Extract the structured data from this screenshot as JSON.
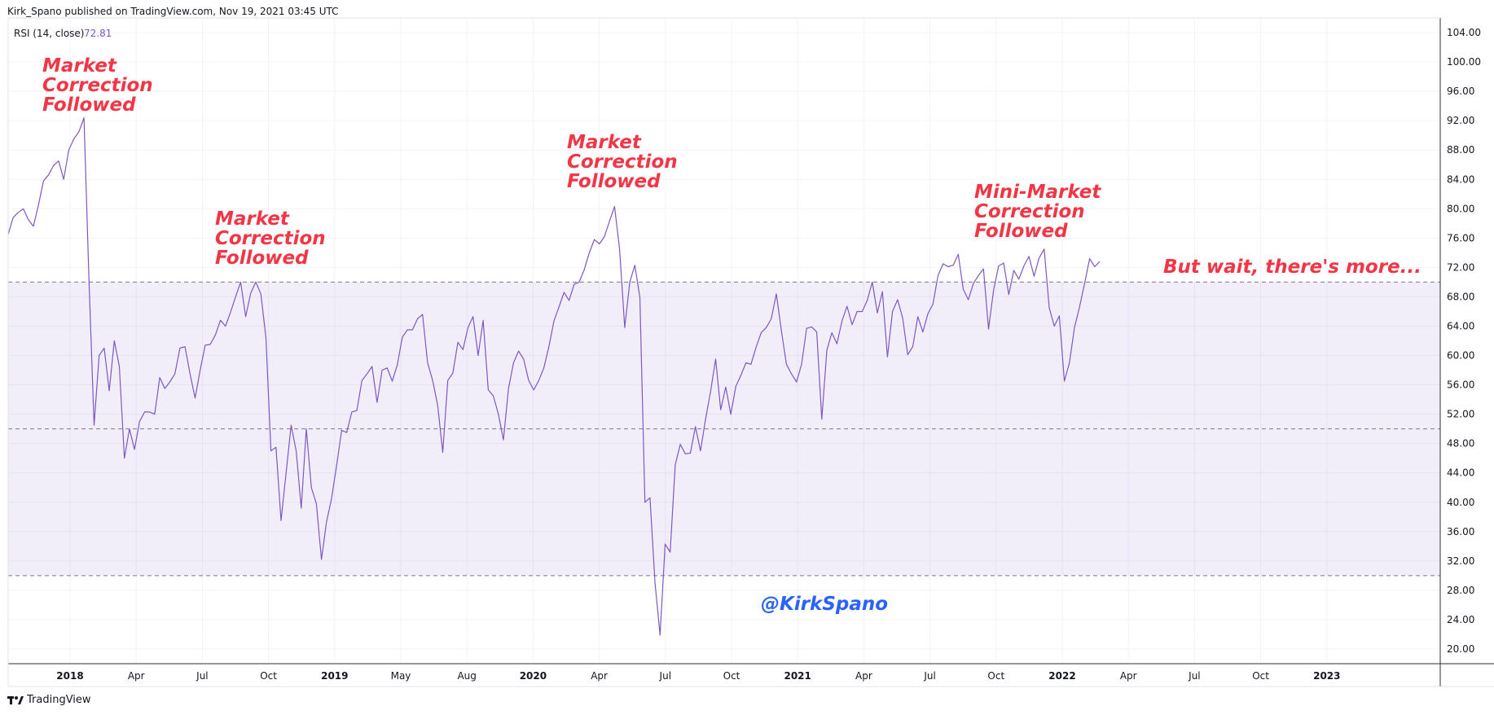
{
  "header": {
    "published_text": "Kirk_Spano published on TradingView.com, Nov 19, 2021 03:45 UTC"
  },
  "footer": {
    "brand": "TradingView",
    "logo_icon": "tradingview-logo-icon"
  },
  "indicator": {
    "label": "RSI (14, close)",
    "value": "72.81",
    "value_color": "#7e57c2"
  },
  "annotations": {
    "a1": [
      "Market",
      "Correction",
      "Followed"
    ],
    "a2": [
      "Market",
      "Correction",
      "Followed"
    ],
    "a3": [
      "Market",
      "Correction",
      "Followed"
    ],
    "a4": [
      "Mini-Market",
      "Correction",
      "Followed"
    ],
    "a5": "But wait, there's more...",
    "watermark": "@KirkSpano"
  },
  "colors": {
    "line": "#7e57c2",
    "band_fill": "#7e57c2",
    "annotation": "#f23645",
    "watermark": "#2962ff",
    "grid": "#f0f3fa"
  },
  "chart_data": {
    "type": "line",
    "title": "RSI (14, close)",
    "ylim": [
      18,
      106
    ],
    "y_ticks": [
      "104.00",
      "100.00",
      "96.00",
      "92.00",
      "88.00",
      "84.00",
      "80.00",
      "76.00",
      "72.00",
      "68.00",
      "64.00",
      "60.00",
      "56.00",
      "52.00",
      "48.00",
      "44.00",
      "40.00",
      "36.00",
      "32.00",
      "28.00",
      "24.00",
      "20.00"
    ],
    "x_ticks": [
      {
        "label": "2018",
        "major": true
      },
      {
        "label": "Apr",
        "major": false
      },
      {
        "label": "Jul",
        "major": false
      },
      {
        "label": "Oct",
        "major": false
      },
      {
        "label": "2019",
        "major": true
      },
      {
        "label": "May",
        "major": false
      },
      {
        "label": "Aug",
        "major": false
      },
      {
        "label": "2020",
        "major": true
      },
      {
        "label": "Apr",
        "major": false
      },
      {
        "label": "Jul",
        "major": false
      },
      {
        "label": "Oct",
        "major": false
      },
      {
        "label": "2021",
        "major": true
      },
      {
        "label": "Apr",
        "major": false
      },
      {
        "label": "Jul",
        "major": false
      },
      {
        "label": "Oct",
        "major": false
      },
      {
        "label": "2022",
        "major": true
      },
      {
        "label": "Apr",
        "major": false
      },
      {
        "label": "Jul",
        "major": false
      },
      {
        "label": "Oct",
        "major": false
      },
      {
        "label": "2023",
        "major": true
      }
    ],
    "levels": {
      "upper": 70,
      "middle": 50,
      "lower": 30
    },
    "series": [
      {
        "values": [
          76.5,
          78.8,
          79.5,
          80,
          78.5,
          77.6,
          80.5,
          83.8,
          84.6,
          85.9,
          86.5,
          84,
          88,
          89.5,
          90.5,
          92.4,
          70,
          50.5,
          60,
          61,
          55.2,
          62,
          58.5,
          46,
          50,
          47.2,
          51,
          52.3,
          52.3,
          52,
          57,
          55.5,
          56.4,
          57.5,
          61,
          61.2,
          57.5,
          54.2,
          58,
          61.4,
          61.5,
          62.8,
          64.8,
          64,
          65.9,
          68,
          70,
          65.3,
          68.5,
          70,
          68.4,
          62.5,
          47,
          47.5,
          37.5,
          44,
          50.5,
          47,
          39.2,
          50,
          42,
          39.8,
          32.2,
          37.3,
          40.5,
          45,
          49.8,
          49.5,
          52.3,
          52.5,
          56.6,
          57.5,
          58.5,
          53.6,
          58,
          58.3,
          56.5,
          58.7,
          62.5,
          63.5,
          63.5,
          65,
          65.6,
          59,
          56.6,
          53.2,
          46.8,
          56.6,
          57.6,
          61.8,
          60.8,
          63.8,
          65.3,
          60,
          64.8,
          55.3,
          54.5,
          52,
          48.5,
          55.5,
          59,
          60.6,
          59.5,
          56.6,
          55.3,
          56.6,
          58.3,
          61.2,
          64.7,
          66.6,
          68.6,
          67.5,
          69.7,
          70,
          71.7,
          74,
          75.8,
          75.2,
          76.2,
          78.3,
          80.3,
          74.5,
          63.8,
          70,
          72.3,
          67.9,
          40,
          40.6,
          29,
          21.9,
          34.3,
          33.2,
          45.1,
          47.9,
          46.6,
          46.7,
          50.3,
          47,
          51.3,
          55.1,
          59.5,
          52.6,
          55.7,
          52,
          55.8,
          57.3,
          59,
          58.8,
          61.1,
          63.1,
          63.8,
          65,
          68.4,
          63.4,
          58.8,
          57.5,
          56.4,
          58.8,
          63.7,
          63.9,
          63.2,
          51.3,
          60.7,
          63.1,
          61.6,
          64.7,
          66.7,
          64.2,
          66,
          66,
          67.5,
          70,
          65.8,
          68.7,
          59.8,
          66,
          67.6,
          65.1,
          60.1,
          61.2,
          65.3,
          63.2,
          65.7,
          67,
          70.9,
          72.5,
          72.1,
          72.3,
          73.8,
          69,
          67.6,
          69.8,
          70.9,
          71.8,
          63.6,
          68.9,
          72.2,
          72.6,
          68.3,
          71.6,
          70.4,
          72.2,
          73.5,
          70.8,
          73.3,
          74.5,
          66.5,
          64,
          65.4,
          56.5,
          59,
          63.8,
          66.6,
          69.8,
          73.2,
          72.1,
          72.8
        ]
      }
    ]
  }
}
